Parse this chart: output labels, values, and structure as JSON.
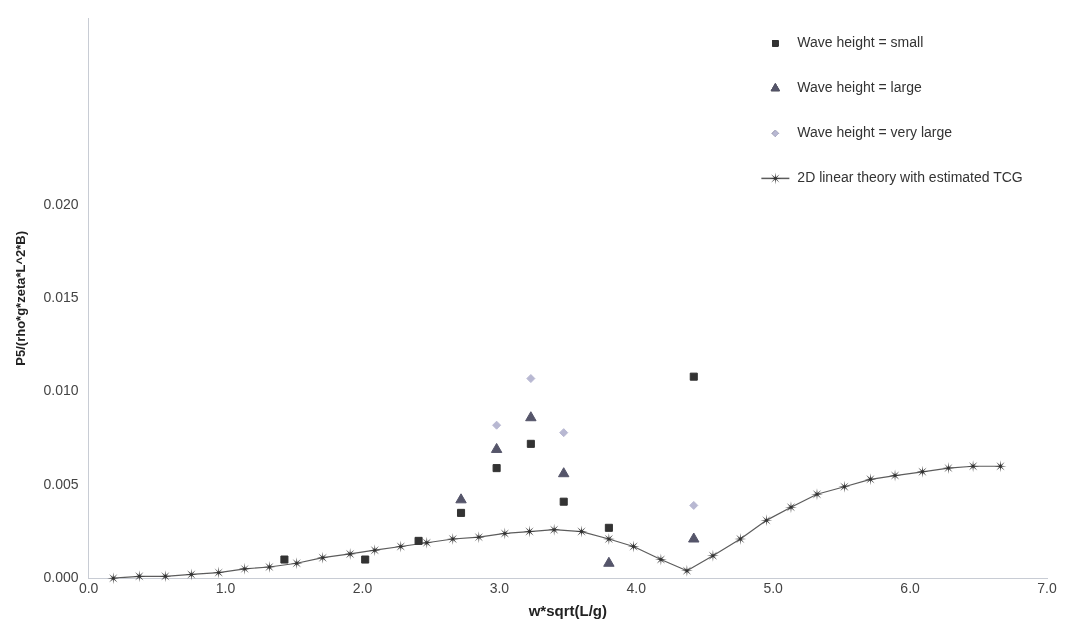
{
  "chart_data": {
    "type": "scatter",
    "xlabel": "w*sqrt(L/g)",
    "ylabel": "P5/(rho*g*zeta*L^2*B)",
    "xlim": [
      0,
      7
    ],
    "xticks": [
      {
        "value": 0,
        "label": "0.0"
      },
      {
        "value": 1,
        "label": "1.0"
      },
      {
        "value": 2,
        "label": "2.0"
      },
      {
        "value": 3,
        "label": "3.0"
      },
      {
        "value": 4,
        "label": "4.0"
      },
      {
        "value": 5,
        "label": "5.0"
      },
      {
        "value": 6,
        "label": "6.0"
      },
      {
        "value": 7,
        "label": "7.0"
      }
    ],
    "ylim": [
      0,
      0.03
    ],
    "yticks": [
      {
        "value": 0,
        "label": "0.000"
      },
      {
        "value": 0.005,
        "label": "0.005"
      },
      {
        "value": 0.01,
        "label": "0.010"
      },
      {
        "value": 0.015,
        "label": "0.015"
      },
      {
        "value": 0.02,
        "label": "0.020"
      }
    ],
    "grid": false,
    "legend": "top right",
    "series": [
      {
        "name": "Wave height = small",
        "type": "scatter",
        "marker": "square",
        "color": "#333333",
        "x": [
          1.43,
          2.02,
          2.41,
          2.72,
          2.98,
          3.23,
          3.47,
          3.8,
          4.42
        ],
        "values": [
          0.001,
          0.001,
          0.002,
          0.0035,
          0.0059,
          0.0072,
          0.0041,
          0.0027,
          0.0108
        ]
      },
      {
        "name": "Wave height = large",
        "type": "scatter",
        "marker": "triangle",
        "color": "#55556a",
        "x": [
          2.72,
          2.98,
          3.23,
          3.47,
          3.8,
          4.42
        ],
        "values": [
          0.0042,
          0.0069,
          0.0086,
          0.0056,
          0.0008,
          0.0021
        ]
      },
      {
        "name": "Wave height = very large",
        "type": "scatter",
        "marker": "diamond",
        "color": "#b8b8d2",
        "x": [
          2.98,
          3.23,
          3.47,
          4.42
        ],
        "values": [
          0.0082,
          0.0107,
          0.0078,
          0.0039
        ]
      },
      {
        "name": "2D linear theory with estimated TCG",
        "type": "line",
        "marker": "star",
        "line_style": "solid",
        "color": "#333333",
        "x": [
          0.18,
          0.37,
          0.56,
          0.75,
          0.95,
          1.14,
          1.32,
          1.52,
          1.71,
          1.91,
          2.09,
          2.28,
          2.47,
          2.66,
          2.85,
          3.04,
          3.22,
          3.4,
          3.6,
          3.8,
          3.98,
          4.18,
          4.37,
          4.56,
          4.76,
          4.95,
          5.13,
          5.32,
          5.52,
          5.71,
          5.89,
          6.09,
          6.28,
          6.46,
          6.66
        ],
        "values": [
          0.0,
          0.0001,
          0.0001,
          0.0002,
          0.0003,
          0.0005,
          0.0006,
          0.0008,
          0.0011,
          0.0013,
          0.0015,
          0.0017,
          0.0019,
          0.0021,
          0.0022,
          0.0024,
          0.0025,
          0.0026,
          0.0025,
          0.0021,
          0.0017,
          0.001,
          0.0004,
          0.0012,
          0.0021,
          0.0031,
          0.0038,
          0.0045,
          0.0049,
          0.0053,
          0.0055,
          0.0057,
          0.0059,
          0.006,
          0.006
        ]
      }
    ]
  }
}
